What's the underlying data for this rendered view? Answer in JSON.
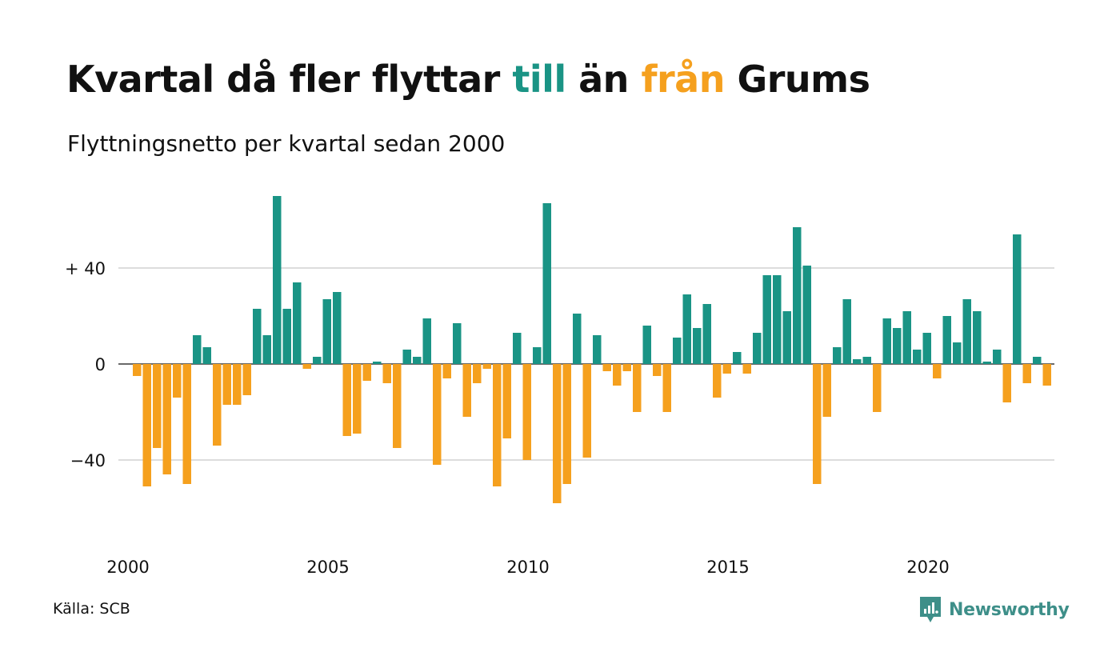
{
  "title": {
    "prefix": "Kvartal då fler flyttar ",
    "pos_word": "till",
    "middle": " än ",
    "neg_word": "från",
    "suffix": " Grums"
  },
  "subtitle": "Flyttningsnetto per kvartal sedan 2000",
  "source": "Källa: SCB",
  "brand": {
    "name": "Newsworthy",
    "icon": "newsworthy-logo-icon"
  },
  "colors": {
    "positive": "#1a9485",
    "negative": "#f5a01e",
    "grid": "#dddddd",
    "text": "#111111"
  },
  "chart_data": {
    "type": "bar",
    "title": "Kvartal då fler flyttar till än från Grums",
    "subtitle": "Flyttningsnetto per kvartal sedan 2000",
    "xlabel": "",
    "ylabel": "",
    "ylim": [
      -62,
      72
    ],
    "y_ticks": [
      {
        "value": 40,
        "label": "+ 40"
      },
      {
        "value": 0,
        "label": "0"
      },
      {
        "value": -40,
        "label": "−40"
      }
    ],
    "x_ticks": [
      {
        "value": 2000,
        "label": "2000"
      },
      {
        "value": 2005,
        "label": "2005"
      },
      {
        "value": 2010,
        "label": "2010"
      },
      {
        "value": 2015,
        "label": "2015"
      },
      {
        "value": 2020,
        "label": "2020"
      }
    ],
    "x_start": "2000 Q1",
    "grid": true,
    "legend": "none",
    "values": [
      -5,
      -51,
      -35,
      -46,
      -14,
      -50,
      12,
      7,
      -34,
      -17,
      -17,
      -13,
      23,
      12,
      70,
      23,
      34,
      -2,
      3,
      27,
      30,
      -30,
      -29,
      -7,
      1,
      -8,
      -35,
      6,
      3,
      19,
      -42,
      -6,
      17,
      -22,
      -8,
      -2,
      -51,
      -31,
      13,
      -40,
      7,
      67,
      -58,
      -50,
      21,
      -39,
      12,
      -3,
      -9,
      -3,
      -20,
      16,
      -5,
      -20,
      11,
      29,
      15,
      25,
      -14,
      -4,
      5,
      -4,
      13,
      37,
      37,
      22,
      57,
      41,
      -50,
      -22,
      7,
      27,
      2,
      3,
      -20,
      19,
      15,
      22,
      6,
      13,
      -6,
      20,
      9,
      27,
      22,
      1,
      6,
      -16,
      54,
      -8,
      3,
      -9
    ]
  }
}
